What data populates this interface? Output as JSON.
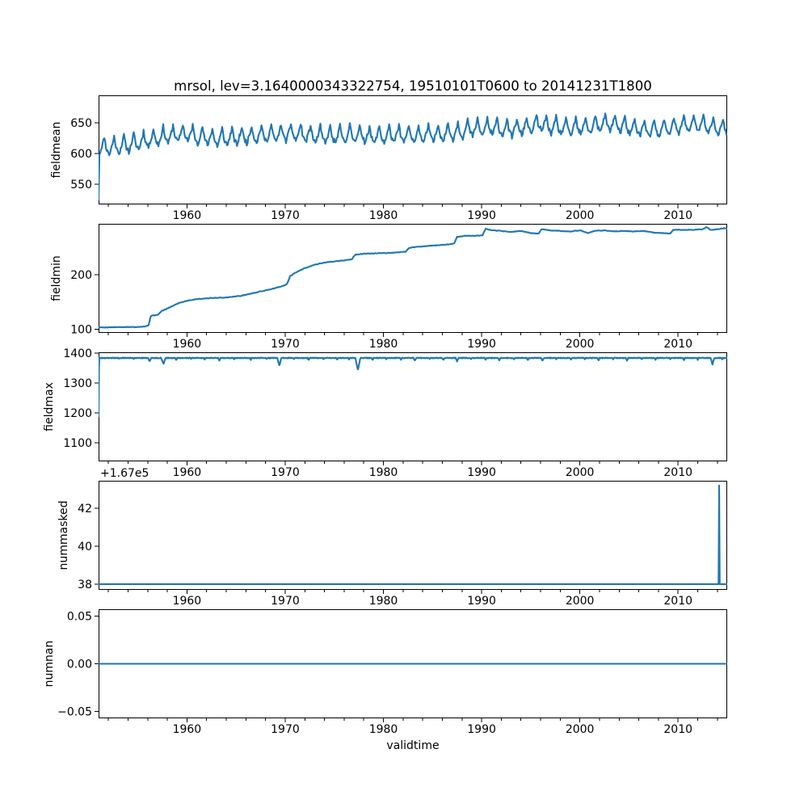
{
  "chart_data": {
    "type": "line",
    "title": "mrsol, lev=3.1640000343322754, 19510101T0600 to 20141231T1800",
    "xlabel": "validtime",
    "x_range": [
      1951,
      2015
    ],
    "x_major_ticks": [
      1960,
      1970,
      1980,
      1990,
      2000,
      2010
    ],
    "x_minor_tick_start": 1952,
    "x_minor_tick_step": 2,
    "line_color": "#1f77b4",
    "axis_color": "#000000",
    "background_color": "#ffffff",
    "grid": false,
    "legend": false,
    "subplots": [
      {
        "name": "fieldmean",
        "ylabel": "fieldmean",
        "ylim": [
          517,
          695
        ],
        "yticks": [
          {
            "v": 550,
            "label": "550"
          },
          {
            "v": 600,
            "label": "600"
          },
          {
            "v": 650,
            "label": "650"
          }
        ],
        "ylabel_x": 74,
        "series": {
          "type": "seasonal",
          "start_point": [
            1951.0,
            525
          ],
          "points_per_year": 12,
          "noise_amp": 3.5,
          "seed": 11,
          "seasonal": [
            -7,
            -12,
            -9,
            -4,
            1,
            5,
            10,
            17,
            9,
            1,
            -4,
            -7
          ],
          "trend": [
            [
              1951,
              612
            ],
            [
              1952,
              610
            ],
            [
              1954,
              614
            ],
            [
              1956,
              622
            ],
            [
              1958,
              629
            ],
            [
              1960,
              632
            ],
            [
              1961,
              628
            ],
            [
              1963,
              624
            ],
            [
              1965,
              626
            ],
            [
              1967,
              630
            ],
            [
              1969,
              631
            ],
            [
              1971,
              633
            ],
            [
              1973,
              629
            ],
            [
              1975,
              628
            ],
            [
              1977,
              631
            ],
            [
              1979,
              628
            ],
            [
              1981,
              630
            ],
            [
              1983,
              629
            ],
            [
              1985,
              631
            ],
            [
              1987,
              634
            ],
            [
              1989,
              640
            ],
            [
              1991,
              642
            ],
            [
              1993,
              639
            ],
            [
              1995,
              644
            ],
            [
              1996,
              648
            ],
            [
              1997,
              644
            ],
            [
              1999,
              641
            ],
            [
              2001,
              644
            ],
            [
              2003,
              650
            ],
            [
              2004,
              645
            ],
            [
              2006,
              640
            ],
            [
              2008,
              638
            ],
            [
              2010,
              645
            ],
            [
              2012,
              648
            ],
            [
              2014,
              642
            ],
            [
              2015,
              640
            ]
          ]
        }
      },
      {
        "name": "fieldmin",
        "ylabel": "fieldmin",
        "ylim": [
          93,
          293
        ],
        "yticks": [
          {
            "v": 100,
            "label": "100"
          },
          {
            "v": 200,
            "label": "200"
          }
        ],
        "ylabel_x": 74,
        "series": {
          "type": "smooth",
          "points_per_year": 12,
          "noise_amp": 0.5,
          "seed": 5,
          "keypoints": [
            [
              1951,
              103
            ],
            [
              1953,
              103.5
            ],
            [
              1955,
              104
            ],
            [
              1955.8,
              105
            ],
            [
              1956.1,
              107
            ],
            [
              1956.3,
              124
            ],
            [
              1956.9,
              126
            ],
            [
              1957.1,
              127
            ],
            [
              1957.4,
              133
            ],
            [
              1957.8,
              136
            ],
            [
              1958.5,
              142
            ],
            [
              1959.2,
              148
            ],
            [
              1960,
              152
            ],
            [
              1961,
              155
            ],
            [
              1962.5,
              157
            ],
            [
              1964,
              158
            ],
            [
              1965.5,
              161
            ],
            [
              1967,
              167
            ],
            [
              1968.5,
              173
            ],
            [
              1969.8,
              179
            ],
            [
              1970.2,
              183
            ],
            [
              1970.5,
              197
            ],
            [
              1971,
              203
            ],
            [
              1972,
              212
            ],
            [
              1973,
              218
            ],
            [
              1974,
              222
            ],
            [
              1975,
              224
            ],
            [
              1976,
              226
            ],
            [
              1976.8,
              228
            ],
            [
              1977.1,
              236
            ],
            [
              1978,
              238
            ],
            [
              1979.5,
              239
            ],
            [
              1981,
              240
            ],
            [
              1982.3,
              242
            ],
            [
              1982.6,
              249
            ],
            [
              1983.5,
              251
            ],
            [
              1985,
              253
            ],
            [
              1986.5,
              255
            ],
            [
              1987.2,
              257
            ],
            [
              1987.5,
              269
            ],
            [
              1988.3,
              271
            ],
            [
              1989.5,
              271
            ],
            [
              1990.1,
              272
            ],
            [
              1990.4,
              284
            ],
            [
              1991,
              281
            ],
            [
              1992,
              280
            ],
            [
              1993,
              278
            ],
            [
              1994,
              280
            ],
            [
              1995,
              276
            ],
            [
              1995.8,
              275
            ],
            [
              1996.1,
              283
            ],
            [
              1997,
              281
            ],
            [
              1998,
              280
            ],
            [
              1999,
              279
            ],
            [
              2000,
              281
            ],
            [
              2000.8,
              276
            ],
            [
              2001.5,
              280
            ],
            [
              2002.5,
              281
            ],
            [
              2003.5,
              279
            ],
            [
              2004.5,
              280
            ],
            [
              2005.5,
              279
            ],
            [
              2006.5,
              280
            ],
            [
              2007.5,
              277
            ],
            [
              2008.5,
              276
            ],
            [
              2009.2,
              275
            ],
            [
              2009.5,
              282
            ],
            [
              2010.5,
              282
            ],
            [
              2011.5,
              282
            ],
            [
              2012.5,
              283
            ],
            [
              2012.9,
              287
            ],
            [
              2013.3,
              282
            ],
            [
              2014,
              283
            ],
            [
              2014.7,
              285
            ],
            [
              2015,
              284
            ]
          ]
        }
      },
      {
        "name": "fieldmax",
        "ylabel": "fieldmax",
        "ylim": [
          1038,
          1403
        ],
        "yticks": [
          {
            "v": 1100,
            "label": "1100"
          },
          {
            "v": 1200,
            "label": "1200"
          },
          {
            "v": 1300,
            "label": "1300"
          },
          {
            "v": 1400,
            "label": "1400"
          }
        ],
        "ylabel_x": 65,
        "series": {
          "type": "smooth",
          "points_per_year": 24,
          "noise_amp": 1.3,
          "seed": 9,
          "keypoints": [
            [
              1951,
              1189
            ],
            [
              1951.05,
              1384
            ],
            [
              2015,
              1384
            ]
          ],
          "dips": [
            [
              1953.1,
              4,
              0.15
            ],
            [
              1954.6,
              3,
              0.12
            ],
            [
              1956.2,
              12,
              0.3
            ],
            [
              1957.6,
              20,
              0.45
            ],
            [
              1958.9,
              7,
              0.18
            ],
            [
              1960.4,
              4,
              0.15
            ],
            [
              1961.8,
              5,
              0.15
            ],
            [
              1963.3,
              9,
              0.22
            ],
            [
              1964.8,
              5,
              0.15
            ],
            [
              1966.5,
              7,
              0.18
            ],
            [
              1968.1,
              4,
              0.15
            ],
            [
              1969.4,
              26,
              0.4
            ],
            [
              1970.9,
              5,
              0.15
            ],
            [
              1972.4,
              8,
              0.2
            ],
            [
              1973.9,
              5,
              0.15
            ],
            [
              1975.3,
              7,
              0.18
            ],
            [
              1976.5,
              6,
              0.15
            ],
            [
              1977.4,
              42,
              0.5
            ],
            [
              1978.9,
              7,
              0.18
            ],
            [
              1980.3,
              5,
              0.15
            ],
            [
              1981.8,
              6,
              0.15
            ],
            [
              1983.2,
              10,
              0.25
            ],
            [
              1984.7,
              5,
              0.15
            ],
            [
              1986.1,
              7,
              0.18
            ],
            [
              1987.5,
              12,
              0.28
            ],
            [
              1988.9,
              5,
              0.15
            ],
            [
              1990.4,
              6,
              0.15
            ],
            [
              1991.8,
              9,
              0.22
            ],
            [
              1993.3,
              5,
              0.15
            ],
            [
              1994.7,
              7,
              0.18
            ],
            [
              1996.2,
              10,
              0.25
            ],
            [
              1997.6,
              5,
              0.15
            ],
            [
              1999.1,
              7,
              0.18
            ],
            [
              2000.5,
              5,
              0.15
            ],
            [
              2001.9,
              8,
              0.2
            ],
            [
              2003.4,
              6,
              0.15
            ],
            [
              2004.8,
              10,
              0.25
            ],
            [
              2006.3,
              5,
              0.15
            ],
            [
              2007.7,
              7,
              0.18
            ],
            [
              2009.2,
              5,
              0.15
            ],
            [
              2010.6,
              8,
              0.2
            ],
            [
              2012,
              6,
              0.15
            ],
            [
              2013.5,
              22,
              0.38
            ],
            [
              2014.5,
              5,
              0.15
            ]
          ]
        }
      },
      {
        "name": "nummasked",
        "ylabel": "nummasked",
        "ylim": [
          37.7,
          43.45
        ],
        "yticks": [
          {
            "v": 38,
            "label": "38"
          },
          {
            "v": 40,
            "label": "40"
          },
          {
            "v": 42,
            "label": "42"
          }
        ],
        "ylabel_x": 83,
        "offset_text": "+1.67e5",
        "series": {
          "type": "smooth",
          "points_per_year": 0,
          "keypoints": [
            [
              1951,
              38
            ],
            [
              2014.12,
              38
            ],
            [
              2014.18,
              43.2
            ],
            [
              2014.24,
              38
            ],
            [
              2015,
              38
            ]
          ]
        }
      },
      {
        "name": "numnan",
        "ylabel": "numnan",
        "ylim": [
          -0.057,
          0.057
        ],
        "yticks": [
          {
            "v": 0.05,
            "label": "0.05"
          },
          {
            "v": 0,
            "label": "0.00"
          },
          {
            "v": -0.05,
            "label": "−0.05"
          }
        ],
        "ylabel_x": 65,
        "series": {
          "type": "smooth",
          "points_per_year": 0,
          "keypoints": [
            [
              1951,
              0
            ],
            [
              2015,
              0
            ]
          ]
        }
      }
    ]
  }
}
